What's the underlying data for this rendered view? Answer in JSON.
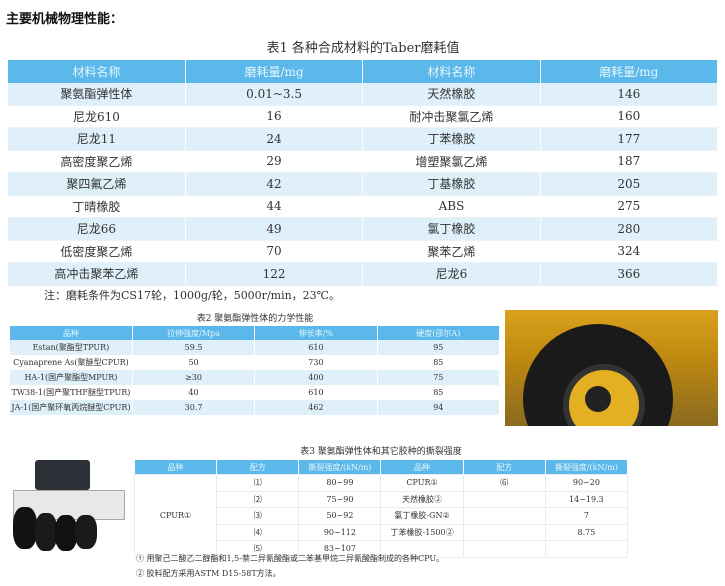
{
  "heading": "主要机械物理性能：",
  "table1": {
    "title": "表1 各种合成材料的Taber磨耗值",
    "headers": [
      "材料名称",
      "磨耗量/mg",
      "材料名称",
      "磨耗量/mg"
    ],
    "rows": [
      [
        "聚氨酯弹性体",
        "0.01~3.5",
        "天然橡胶",
        "146"
      ],
      [
        "尼龙610",
        "16",
        "耐冲击聚氯乙烯",
        "160"
      ],
      [
        "尼龙11",
        "24",
        "丁苯橡胶",
        "177"
      ],
      [
        "高密度聚乙烯",
        "29",
        "增塑聚氯乙烯",
        "187"
      ],
      [
        "聚四氟乙烯",
        "42",
        "丁基橡胶",
        "205"
      ],
      [
        "丁晴橡胶",
        "44",
        "ABS",
        "275"
      ],
      [
        "尼龙66",
        "49",
        "氯丁橡胶",
        "280"
      ],
      [
        "低密度聚乙烯",
        "70",
        "聚苯乙烯",
        "324"
      ],
      [
        "高冲击聚苯乙烯",
        "122",
        "尼龙6",
        "366"
      ]
    ],
    "note": "注：磨耗条件为CS17轮，1000g/轮，5000r/min，23℃。"
  },
  "table2": {
    "title": "表2 聚氨酯弹性体的力学性能",
    "headers": [
      "品种",
      "拉伸强度/Mpa",
      "伸长率/%",
      "硬度(邵尔A)"
    ],
    "rows": [
      [
        "Estan(聚酯型TPUR)",
        "59.5",
        "610",
        "95"
      ],
      [
        "Cyanaprene As(聚醚型CPUR)",
        "50",
        "730",
        "85"
      ],
      [
        "HA-1(国产聚酯型MPUR)",
        "≥30",
        "400",
        "75"
      ],
      [
        "TW38-1(国产聚THF醚型TPUR)",
        "40",
        "610",
        "85"
      ],
      [
        "JA-1(国产聚环氧丙烷醚型CPUR)",
        "30.7",
        "462",
        "94"
      ]
    ]
  },
  "table3": {
    "title": "表3 聚氨酯弹性体和其它胶种的撕裂强度",
    "headers": [
      "品种",
      "配方",
      "撕裂强度/(kN/m)",
      "品种",
      "配方",
      "撕裂强度/(kN/m)"
    ],
    "left_name": "CPUR①",
    "rows": [
      [
        "⑴",
        "80~99",
        "CPUR①",
        "⑹",
        "90~20"
      ],
      [
        "⑵",
        "75~90",
        "天然橡胶②",
        "",
        "14~19.3"
      ],
      [
        "⑶",
        "50~92",
        "氯丁橡胶-GN②",
        "",
        "7"
      ],
      [
        "⑷",
        "90~112",
        "丁苯橡胶-1500②",
        "",
        "8.75"
      ],
      [
        "⑸",
        "83~107",
        "",
        "",
        ""
      ]
    ],
    "footnotes": [
      "① 用聚己二酸乙二醇酯和1,5-萘二异氰酸酯或二苯基甲烷二异氰酸酯制成的各种CPU。",
      "② 胶料配方采用ASTM D15-58T方法。"
    ]
  },
  "images": [
    "tire-photo",
    "road-roller-photo"
  ]
}
